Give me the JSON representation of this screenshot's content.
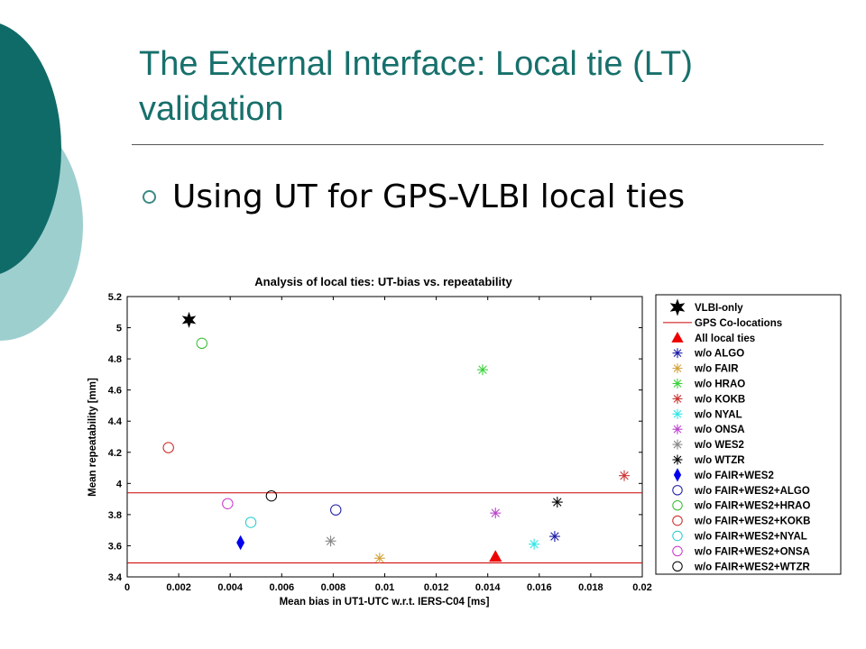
{
  "slide": {
    "title": "The External Interface: Local tie (LT) validation",
    "bullet": "Using UT for GPS-VLBI local ties",
    "theme_colors": {
      "dark_teal": "#0f6b68",
      "light_teal": "#9ecfcf",
      "title": "#17706b"
    }
  },
  "chart_data": {
    "type": "scatter",
    "title": "Analysis of local ties: UT-bias vs. repeatability",
    "xlabel": "Mean bias in UT1-UTC w.r.t. IERS-C04 [ms]",
    "ylabel": "Mean repeatability [mm]",
    "xlim": [
      0,
      0.02
    ],
    "ylim": [
      3.4,
      5.2
    ],
    "x_ticks": [
      "0",
      "0.002",
      "0.004",
      "0.006",
      "0.008",
      "0.01",
      "0.012",
      "0.014",
      "0.016",
      "0.018",
      "0.02"
    ],
    "y_ticks": [
      "3.4",
      "3.6",
      "3.8",
      "4",
      "4.2",
      "4.4",
      "4.6",
      "4.8",
      "5",
      "5.2"
    ],
    "grid": false,
    "legend_position": "outside-right",
    "hlines": [
      {
        "name": "GPS Co-locations",
        "y": 3.94,
        "color": "#cc0000"
      },
      {
        "name": "GPS Co-locations",
        "y": 3.49,
        "color": "#cc0000"
      }
    ],
    "series": [
      {
        "name": "VLBI-only",
        "marker": "hexagram",
        "color": "#000000",
        "points": [
          [
            0.0024,
            5.05
          ]
        ]
      },
      {
        "name": "All local ties",
        "marker": "triangle",
        "color": "#ee0000",
        "points": [
          [
            0.0143,
            3.53
          ]
        ]
      },
      {
        "name": "w/o ALGO",
        "marker": "asterisk",
        "color": "#1a1aa6",
        "points": [
          [
            0.0166,
            3.66
          ]
        ]
      },
      {
        "name": "w/o FAIR",
        "marker": "asterisk",
        "color": "#d4a33a",
        "points": [
          [
            0.0098,
            3.52
          ]
        ]
      },
      {
        "name": "w/o HRAO",
        "marker": "asterisk",
        "color": "#3ad13a",
        "points": [
          [
            0.0138,
            4.73
          ]
        ]
      },
      {
        "name": "w/o KOKB",
        "marker": "asterisk",
        "color": "#cc3333",
        "points": [
          [
            0.0193,
            4.05
          ]
        ]
      },
      {
        "name": "w/o NYAL",
        "marker": "asterisk",
        "color": "#2ee6e6",
        "points": [
          [
            0.0158,
            3.61
          ]
        ]
      },
      {
        "name": "w/o ONSA",
        "marker": "asterisk",
        "color": "#bb44cc",
        "points": [
          [
            0.0143,
            3.81
          ]
        ]
      },
      {
        "name": "w/o WES2",
        "marker": "asterisk",
        "color": "#888888",
        "points": [
          [
            0.0079,
            3.63
          ]
        ]
      },
      {
        "name": "w/o WTZR",
        "marker": "asterisk",
        "color": "#000000",
        "points": [
          [
            0.0167,
            3.88
          ]
        ]
      },
      {
        "name": "w/o FAIR+WES2",
        "marker": "diamond",
        "color": "#0000ee",
        "points": [
          [
            0.0044,
            3.62
          ]
        ]
      },
      {
        "name": "w/o FAIR+WES2+ALGO",
        "marker": "circle",
        "color": "#1a1aa6",
        "points": [
          [
            0.0081,
            3.83
          ]
        ]
      },
      {
        "name": "w/o FAIR+WES2+HRAO",
        "marker": "circle",
        "color": "#33bb33",
        "points": [
          [
            0.0029,
            4.9
          ]
        ]
      },
      {
        "name": "w/o FAIR+WES2+KOKB",
        "marker": "circle",
        "color": "#cc2222",
        "points": [
          [
            0.0016,
            4.23
          ]
        ]
      },
      {
        "name": "w/o FAIR+WES2+NYAL",
        "marker": "circle",
        "color": "#22cccc",
        "points": [
          [
            0.0048,
            3.75
          ]
        ]
      },
      {
        "name": "w/o FAIR+WES2+ONSA",
        "marker": "circle",
        "color": "#cc33cc",
        "points": [
          [
            0.0039,
            3.87
          ]
        ]
      },
      {
        "name": "w/o FAIR+WES2+WTZR",
        "marker": "circle",
        "color": "#000000",
        "points": [
          [
            0.0056,
            3.92
          ]
        ]
      }
    ],
    "legend": [
      {
        "label": "VLBI-only",
        "marker": "hexagram",
        "color": "#000000"
      },
      {
        "label": "GPS Co-locations",
        "marker": "line",
        "color": "#cc0000"
      },
      {
        "label": "All local ties",
        "marker": "triangle",
        "color": "#ee0000"
      },
      {
        "label": "w/o ALGO",
        "marker": "asterisk",
        "color": "#1a1aa6"
      },
      {
        "label": "w/o FAIR",
        "marker": "asterisk",
        "color": "#d4a33a"
      },
      {
        "label": "w/o HRAO",
        "marker": "asterisk",
        "color": "#3ad13a"
      },
      {
        "label": "w/o KOKB",
        "marker": "asterisk",
        "color": "#cc3333"
      },
      {
        "label": "w/o NYAL",
        "marker": "asterisk",
        "color": "#2ee6e6"
      },
      {
        "label": "w/o ONSA",
        "marker": "asterisk",
        "color": "#bb44cc"
      },
      {
        "label": "w/o WES2",
        "marker": "asterisk",
        "color": "#888888"
      },
      {
        "label": "w/o WTZR",
        "marker": "asterisk",
        "color": "#000000"
      },
      {
        "label": "w/o FAIR+WES2",
        "marker": "diamond",
        "color": "#0000ee"
      },
      {
        "label": "w/o FAIR+WES2+ALGO",
        "marker": "circle",
        "color": "#1a1aa6"
      },
      {
        "label": "w/o FAIR+WES2+HRAO",
        "marker": "circle",
        "color": "#33bb33"
      },
      {
        "label": "w/o FAIR+WES2+KOKB",
        "marker": "circle",
        "color": "#cc2222"
      },
      {
        "label": "w/o FAIR+WES2+NYAL",
        "marker": "circle",
        "color": "#22cccc"
      },
      {
        "label": "w/o FAIR+WES2+ONSA",
        "marker": "circle",
        "color": "#cc33cc"
      },
      {
        "label": "w/o FAIR+WES2+WTZR",
        "marker": "circle",
        "color": "#000000"
      }
    ]
  }
}
